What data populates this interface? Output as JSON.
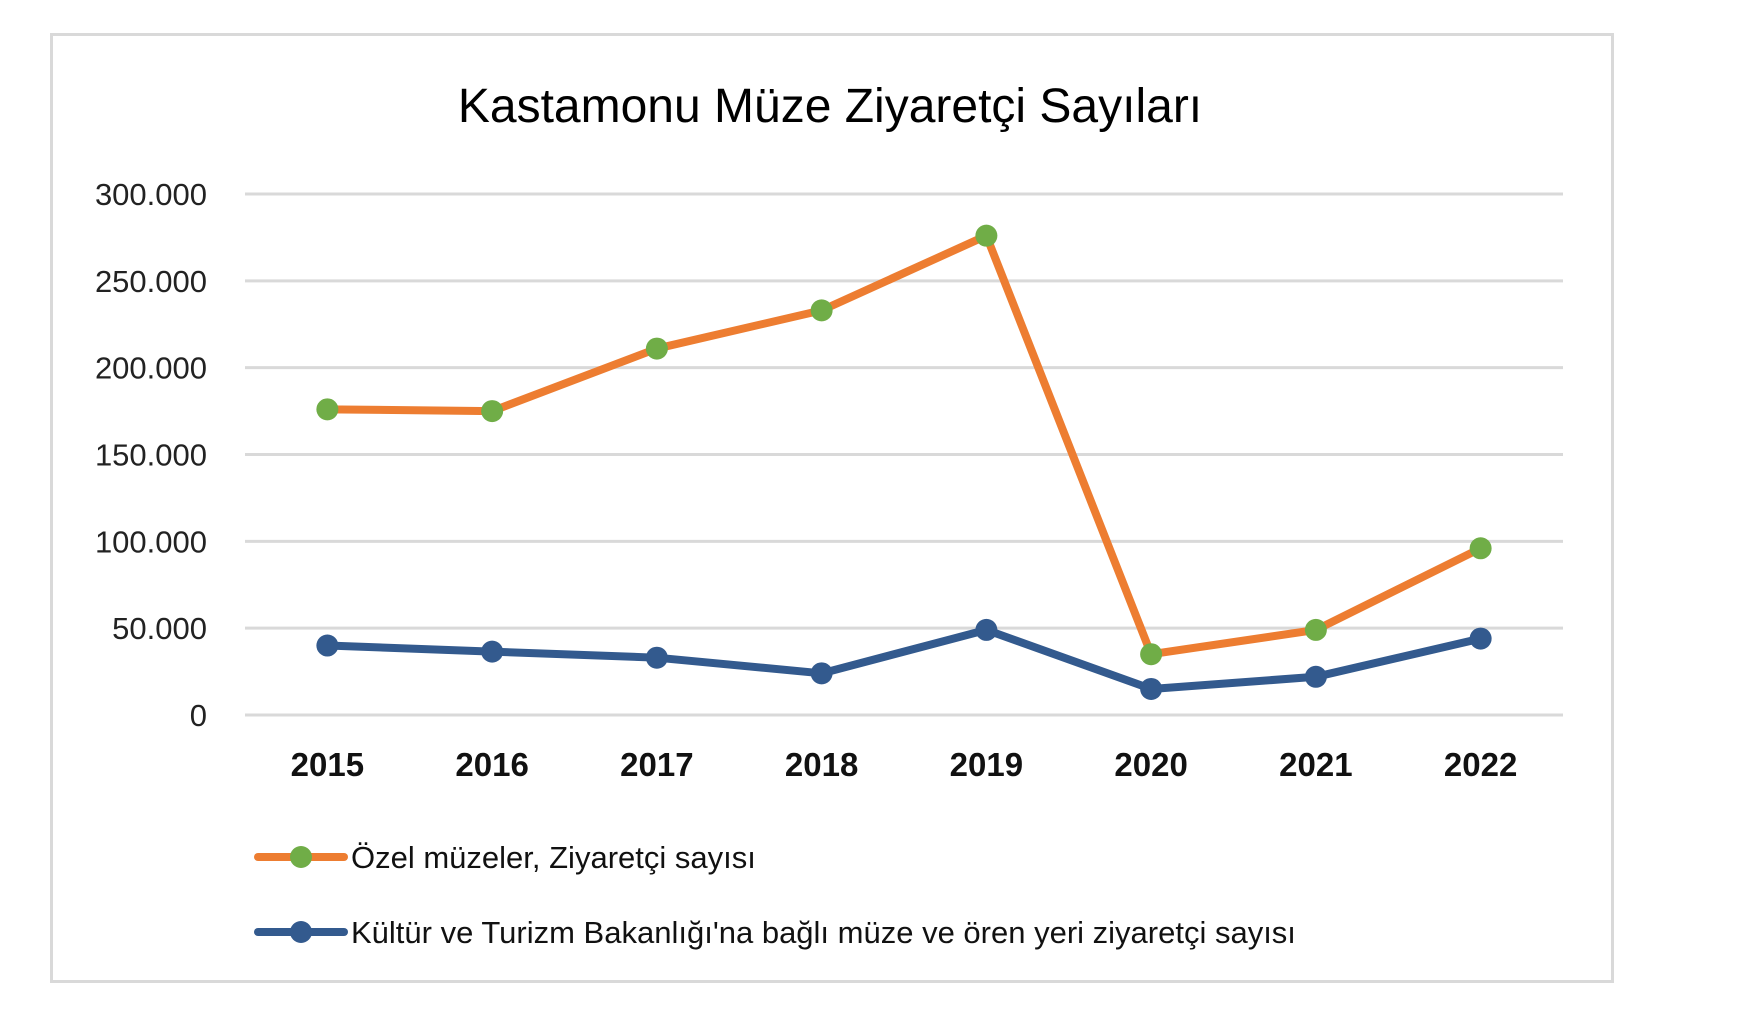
{
  "chart_data": {
    "type": "line",
    "title": "Kastamonu Müze Ziyaretçi Sayıları",
    "xlabel": "",
    "ylabel": "",
    "categories": [
      "2015",
      "2016",
      "2017",
      "2018",
      "2019",
      "2020",
      "2021",
      "2022"
    ],
    "ylim": [
      0,
      300000
    ],
    "yticks": [
      0,
      50000,
      100000,
      150000,
      200000,
      250000,
      300000
    ],
    "ytick_labels": [
      "0",
      "50.000",
      "100.000",
      "150.000",
      "200.000",
      "250.000",
      "300.000"
    ],
    "grid": true,
    "legend_position": "bottom",
    "series": [
      {
        "name": "Özel müzeler, Ziyaretçi sayısı",
        "values": [
          176000,
          175000,
          211000,
          233000,
          276000,
          35000,
          49000,
          96000
        ],
        "line_color": "#ED7D31",
        "marker_color": "#70AD47"
      },
      {
        "name": "Kültür ve Turizm Bakanlığı'na bağlı müze ve ören yeri ziyaretçi sayısı",
        "values": [
          40000,
          36500,
          33000,
          24000,
          49000,
          15000,
          22000,
          44000
        ],
        "line_color": "#335A8E",
        "marker_color": "#335A8E"
      }
    ]
  }
}
